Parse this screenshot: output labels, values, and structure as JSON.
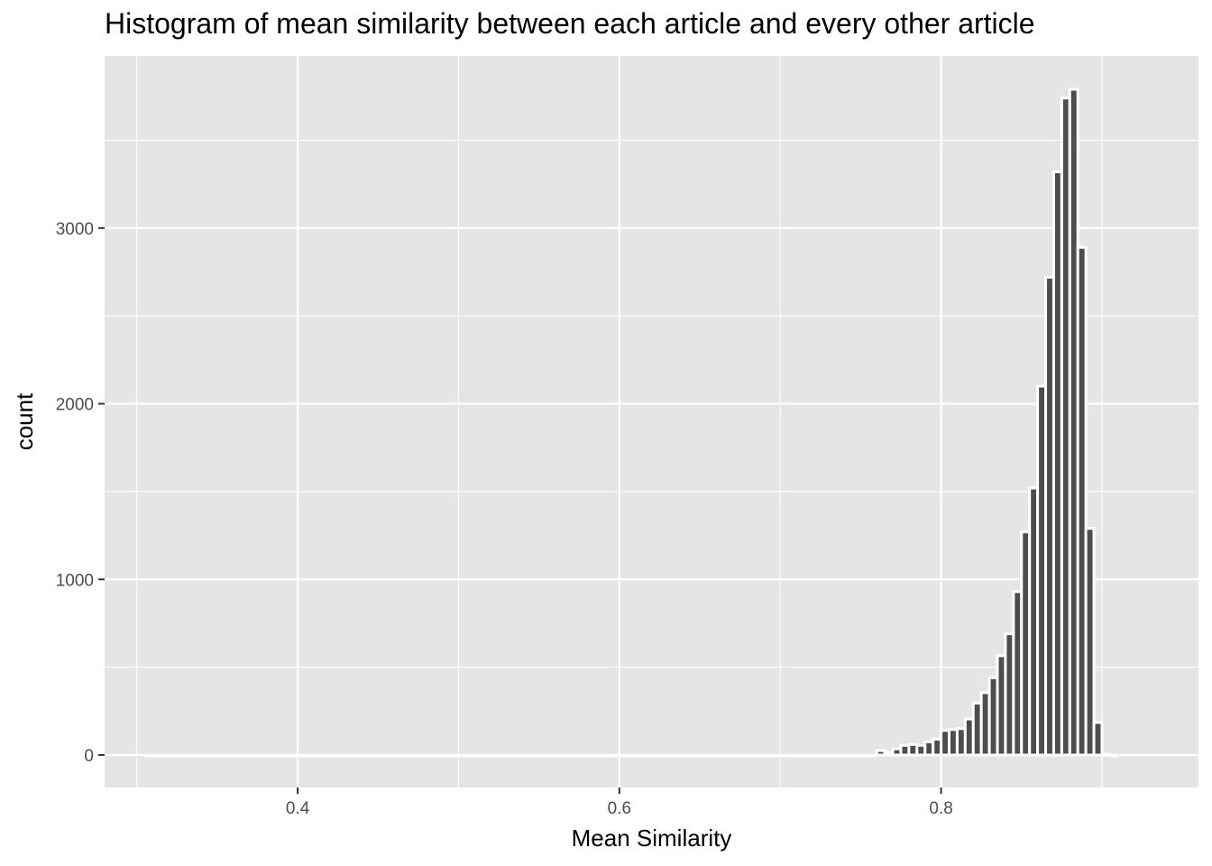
{
  "chart_data": {
    "type": "bar",
    "title": "Histogram of mean similarity between each article and every other article",
    "xlabel": "Mean Similarity",
    "ylabel": "count",
    "xlim": [
      0.28,
      0.96
    ],
    "ylim": [
      -185,
      3980
    ],
    "x_ticks": [
      {
        "value": 0.4,
        "label": "0.4"
      },
      {
        "value": 0.6,
        "label": "0.6"
      },
      {
        "value": 0.8,
        "label": "0.8"
      }
    ],
    "y_ticks": [
      {
        "value": 0,
        "label": "0"
      },
      {
        "value": 1000,
        "label": "1000"
      },
      {
        "value": 2000,
        "label": "2000"
      },
      {
        "value": 3000,
        "label": "3000"
      }
    ],
    "x_minor": [
      0.3,
      0.5,
      0.7,
      0.9
    ],
    "y_minor": [
      500,
      1500,
      2500,
      3500
    ],
    "grid": true,
    "bin_width": 0.005,
    "bins": [
      {
        "x": 0.76,
        "count": 25
      },
      {
        "x": 0.765,
        "count": 15
      },
      {
        "x": 0.77,
        "count": 35
      },
      {
        "x": 0.775,
        "count": 55
      },
      {
        "x": 0.78,
        "count": 60
      },
      {
        "x": 0.785,
        "count": 55
      },
      {
        "x": 0.79,
        "count": 75
      },
      {
        "x": 0.795,
        "count": 90
      },
      {
        "x": 0.8,
        "count": 140
      },
      {
        "x": 0.805,
        "count": 145
      },
      {
        "x": 0.81,
        "count": 150
      },
      {
        "x": 0.815,
        "count": 205
      },
      {
        "x": 0.82,
        "count": 295
      },
      {
        "x": 0.825,
        "count": 355
      },
      {
        "x": 0.83,
        "count": 440
      },
      {
        "x": 0.835,
        "count": 565
      },
      {
        "x": 0.84,
        "count": 690
      },
      {
        "x": 0.845,
        "count": 930
      },
      {
        "x": 0.85,
        "count": 1270
      },
      {
        "x": 0.855,
        "count": 1520
      },
      {
        "x": 0.86,
        "count": 2100
      },
      {
        "x": 0.865,
        "count": 2720
      },
      {
        "x": 0.87,
        "count": 3320
      },
      {
        "x": 0.875,
        "count": 3740
      },
      {
        "x": 0.88,
        "count": 3790
      },
      {
        "x": 0.885,
        "count": 2890
      },
      {
        "x": 0.89,
        "count": 1290
      },
      {
        "x": 0.895,
        "count": 185
      },
      {
        "x": 0.9,
        "count": 5
      }
    ],
    "tail_start": 0.305,
    "colors": {
      "panel": "#e5e5e5",
      "grid": "#ffffff",
      "bar_fill": "#4d4d4d",
      "bar_outline": "#ffffff",
      "tick": "#333333"
    }
  }
}
